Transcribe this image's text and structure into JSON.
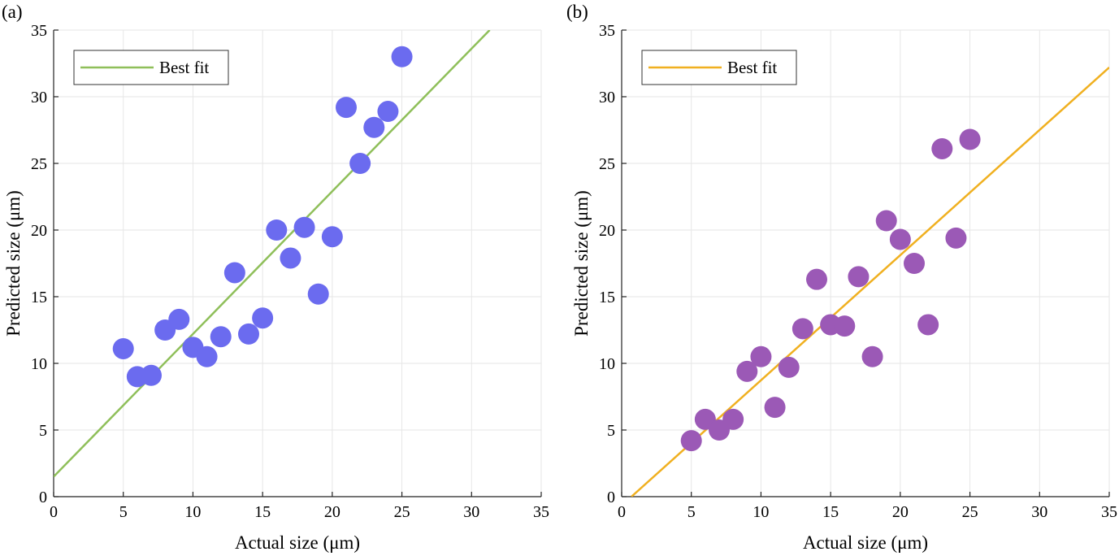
{
  "chart_data": [
    {
      "type": "scatter",
      "panel_label": "(a)",
      "xlabel": "Actual size (μm)",
      "ylabel": "Predicted size (μm)",
      "xlim": [
        0,
        35
      ],
      "ylim": [
        0,
        35
      ],
      "xticks": [
        0,
        5,
        10,
        15,
        20,
        25,
        30,
        35
      ],
      "yticks": [
        0,
        5,
        10,
        15,
        20,
        25,
        30,
        35
      ],
      "grid": true,
      "legend": {
        "placement": "top-left",
        "entries": [
          "Best fit"
        ]
      },
      "point_color": "#6b6bef",
      "line_color": "#8fbf5a",
      "points": [
        [
          5,
          11.1
        ],
        [
          6,
          9.0
        ],
        [
          7,
          9.1
        ],
        [
          8,
          12.5
        ],
        [
          9,
          13.3
        ],
        [
          10,
          11.2
        ],
        [
          11,
          10.5
        ],
        [
          12,
          12.0
        ],
        [
          13,
          16.8
        ],
        [
          14,
          12.2
        ],
        [
          15,
          13.4
        ],
        [
          16,
          20.0
        ],
        [
          17,
          17.9
        ],
        [
          18,
          20.2
        ],
        [
          19,
          15.2
        ],
        [
          20,
          19.5
        ],
        [
          21,
          29.2
        ],
        [
          22,
          25.0
        ],
        [
          23,
          27.7
        ],
        [
          24,
          28.9
        ],
        [
          25,
          33.0
        ]
      ],
      "fit_line": {
        "name": "Best fit",
        "x": [
          0,
          31.3
        ],
        "y": [
          1.5,
          35
        ]
      }
    },
    {
      "type": "scatter",
      "panel_label": "(b)",
      "xlabel": "Actual size (μm)",
      "ylabel": "Predicted size (μm)",
      "xlim": [
        0,
        35
      ],
      "ylim": [
        0,
        35
      ],
      "xticks": [
        0,
        5,
        10,
        15,
        20,
        25,
        30,
        35
      ],
      "yticks": [
        0,
        5,
        10,
        15,
        20,
        25,
        30,
        35
      ],
      "grid": true,
      "legend": {
        "placement": "top-left",
        "entries": [
          "Best fit"
        ]
      },
      "point_color": "#9b59b6",
      "line_color": "#f0b020",
      "points": [
        [
          5,
          4.2
        ],
        [
          6,
          5.8
        ],
        [
          7,
          5.0
        ],
        [
          8,
          5.8
        ],
        [
          9,
          9.4
        ],
        [
          10,
          10.5
        ],
        [
          11,
          6.7
        ],
        [
          12,
          9.7
        ],
        [
          13,
          12.6
        ],
        [
          14,
          16.3
        ],
        [
          15,
          12.9
        ],
        [
          16,
          12.8
        ],
        [
          17,
          16.5
        ],
        [
          18,
          10.5
        ],
        [
          19,
          20.7
        ],
        [
          20,
          19.3
        ],
        [
          21,
          17.5
        ],
        [
          22,
          12.9
        ],
        [
          23,
          26.1
        ],
        [
          24,
          19.4
        ],
        [
          25,
          26.8
        ]
      ],
      "fit_line": {
        "name": "Best fit",
        "x": [
          0.7,
          35
        ],
        "y": [
          0,
          32.2
        ]
      }
    }
  ]
}
